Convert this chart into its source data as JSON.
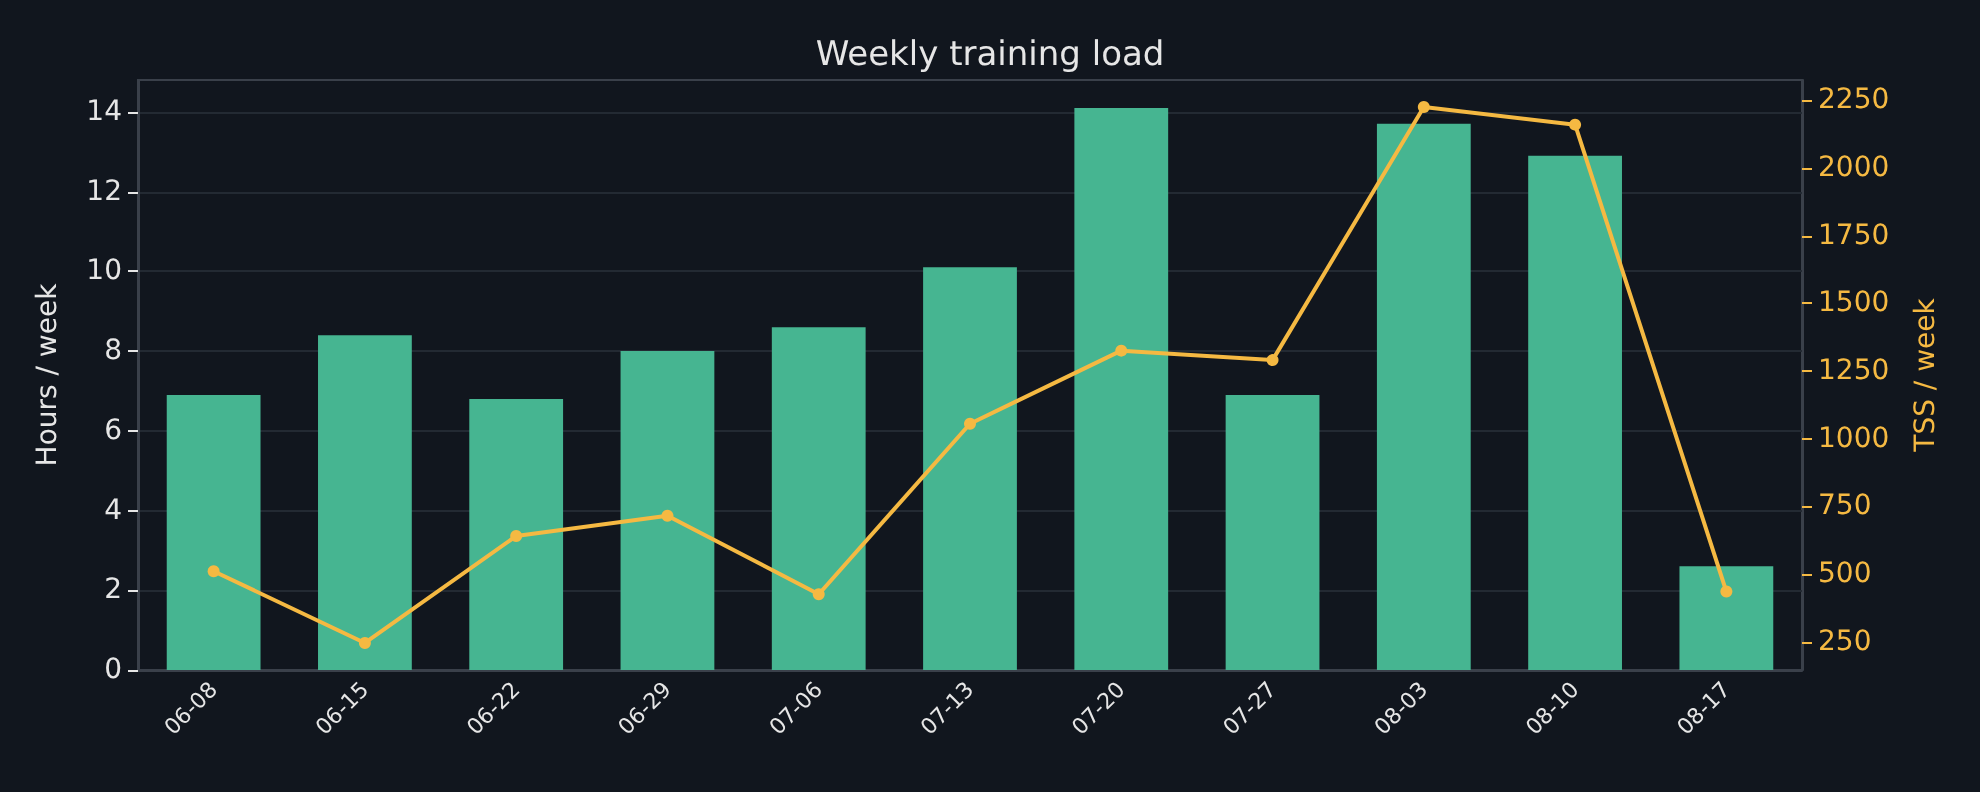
{
  "chart_data": {
    "type": "bar",
    "title": "Weekly training load",
    "ylabel": "Hours / week",
    "y2label": "TSS / week",
    "categories": [
      "06-08",
      "06-15",
      "06-22",
      "06-29",
      "07-06",
      "07-13",
      "07-20",
      "07-27",
      "08-03",
      "08-10",
      "08-17"
    ],
    "series": [
      {
        "color": "#46b591",
        "values": [
          6.9,
          8.4,
          6.8,
          8.0,
          8.6,
          10.1,
          14.1,
          6.9,
          13.7,
          12.9,
          2.6
        ]
      },
      {
        "type": "line",
        "axis": "y2",
        "color": "#f5b942",
        "marker": "circle",
        "line_style": "solid",
        "values": [
          510,
          245,
          640,
          715,
          425,
          1055,
          1325,
          1290,
          2225,
          2160,
          435
        ]
      }
    ],
    "ylim": [
      0,
      14.8
    ],
    "yticks": [
      0,
      2,
      4,
      6,
      8,
      10,
      12,
      14
    ],
    "y2lim": [
      145,
      2325
    ],
    "y2ticks": [
      250,
      500,
      750,
      1000,
      1250,
      1500,
      1750,
      2000,
      2250
    ],
    "grid": "y"
  }
}
